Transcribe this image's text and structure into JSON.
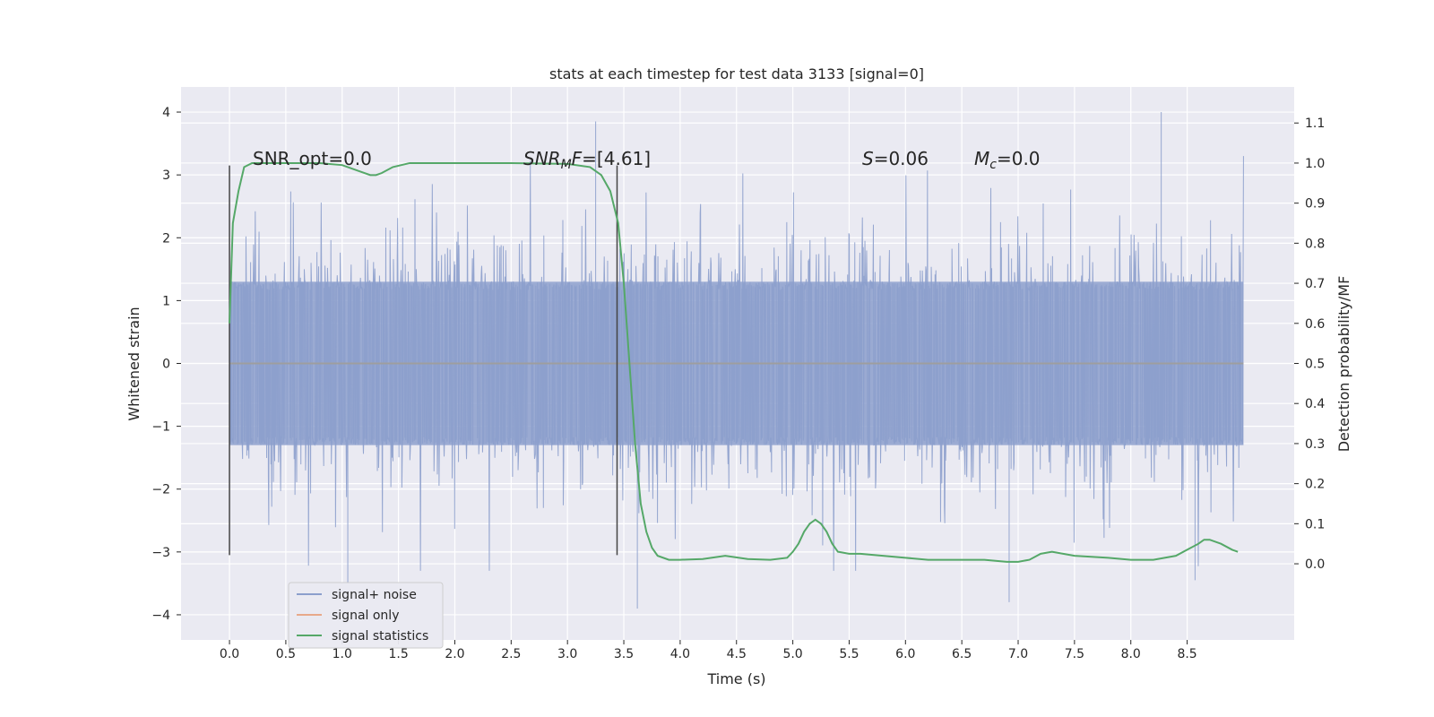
{
  "chart_data": {
    "type": "line",
    "title": "stats at each timestep for test data 3133 [signal=0]",
    "xlabel": "Time (s)",
    "ylabel": "Whitened strain",
    "y2label": "Detection probability/MF",
    "xlim": [
      -0.43,
      9.45
    ],
    "ylim": [
      -4.4,
      4.4
    ],
    "y2lim": [
      -0.19,
      1.19
    ],
    "x_ticks": [
      0.0,
      0.5,
      1.0,
      1.5,
      2.0,
      2.5,
      3.0,
      3.5,
      4.0,
      4.5,
      5.0,
      5.5,
      6.0,
      6.5,
      7.0,
      7.5,
      8.0,
      8.5
    ],
    "x_tick_labels": [
      "0.0",
      "0.5",
      "1.0",
      "1.5",
      "2.0",
      "2.5",
      "3.0",
      "3.5",
      "4.0",
      "4.5",
      "5.0",
      "5.5",
      "6.0",
      "6.5",
      "7.0",
      "7.5",
      "8.0",
      "8.5"
    ],
    "y_ticks": [
      4,
      3,
      2,
      1,
      0,
      -1,
      -2,
      -3,
      -4
    ],
    "y_tick_labels": [
      "4",
      "3",
      "2",
      "1",
      "0",
      "−1",
      "−2",
      "−3",
      "−4"
    ],
    "y2_ticks": [
      1.1,
      1.0,
      0.9,
      0.8,
      0.7,
      0.6,
      0.5,
      0.4,
      0.3,
      0.2,
      0.1,
      0.0
    ],
    "y2_tick_labels": [
      "1.1",
      "1.0",
      "0.9",
      "0.8",
      "0.7",
      "0.6",
      "0.5",
      "0.4",
      "0.3",
      "0.2",
      "0.1",
      "0.0"
    ],
    "grid": true,
    "legend_position": "lower-left",
    "series": [
      {
        "name": "signal+ noise",
        "axis": "left",
        "color": "#8c9fcc",
        "x_range": [
          0.0,
          9.0
        ],
        "envelope_typical": 1.3,
        "notable_peaks": [
          {
            "x": 3.25,
            "y": 3.85
          },
          {
            "x": 8.27,
            "y": 4.0
          },
          {
            "x": 3.62,
            "y": -3.9
          },
          {
            "x": 6.92,
            "y": -3.8
          },
          {
            "x": 8.57,
            "y": -3.45
          },
          {
            "x": 1.05,
            "y": -3.5
          }
        ]
      },
      {
        "name": "signal only",
        "axis": "left",
        "color": "#dd8452",
        "x": [
          0.0,
          9.0
        ],
        "y": [
          0.0,
          0.0
        ]
      },
      {
        "name": "signal statistics",
        "axis": "right",
        "color": "#55a868",
        "x": [
          0.0,
          0.03,
          0.08,
          0.13,
          0.2,
          0.4,
          0.8,
          1.0,
          1.15,
          1.25,
          1.3,
          1.35,
          1.45,
          1.6,
          2.0,
          2.5,
          3.0,
          3.2,
          3.3,
          3.38,
          3.45,
          3.5,
          3.55,
          3.6,
          3.65,
          3.7,
          3.75,
          3.8,
          3.9,
          4.0,
          4.2,
          4.4,
          4.6,
          4.8,
          4.95,
          5.0,
          5.05,
          5.1,
          5.15,
          5.2,
          5.25,
          5.3,
          5.35,
          5.4,
          5.5,
          5.6,
          5.8,
          6.0,
          6.2,
          6.5,
          6.7,
          6.9,
          7.0,
          7.1,
          7.2,
          7.3,
          7.5,
          7.8,
          8.0,
          8.2,
          8.4,
          8.5,
          8.6,
          8.65,
          8.7,
          8.8,
          8.9,
          8.95
        ],
        "y": [
          0.6,
          0.85,
          0.93,
          0.99,
          1.0,
          1.0,
          1.0,
          0.995,
          0.98,
          0.97,
          0.97,
          0.975,
          0.99,
          1.0,
          1.0,
          1.0,
          0.998,
          0.99,
          0.97,
          0.93,
          0.85,
          0.7,
          0.5,
          0.3,
          0.15,
          0.08,
          0.04,
          0.02,
          0.01,
          0.01,
          0.012,
          0.02,
          0.012,
          0.01,
          0.015,
          0.03,
          0.05,
          0.08,
          0.1,
          0.11,
          0.1,
          0.08,
          0.05,
          0.03,
          0.025,
          0.025,
          0.02,
          0.015,
          0.01,
          0.01,
          0.01,
          0.005,
          0.005,
          0.01,
          0.025,
          0.03,
          0.02,
          0.015,
          0.01,
          0.01,
          0.02,
          0.035,
          0.05,
          0.06,
          0.06,
          0.05,
          0.035,
          0.03
        ]
      }
    ],
    "vertical_markers": [
      {
        "x": 0.0,
        "y_range": [
          -3.05,
          3.15
        ],
        "color": "#444444"
      },
      {
        "x": 3.44,
        "y_range": [
          -3.05,
          3.15
        ],
        "color": "#444444"
      }
    ],
    "annotations": [
      {
        "key": "snr_opt",
        "x": 0.2,
        "y": 3.2,
        "text": "SNR_opt=0.0"
      },
      {
        "key": "snr_mf",
        "x": 2.6,
        "y": 3.2,
        "text": "SNR_MF=[4.61]"
      },
      {
        "key": "s",
        "x": 5.6,
        "y": 3.2,
        "text": "S=0.06"
      },
      {
        "key": "mc",
        "x": 6.6,
        "y": 3.2,
        "text": "M_c=0.0"
      }
    ],
    "annotation_parts": {
      "snr_opt": "SNR_opt=0.0",
      "snr_mf_base": "SNR",
      "snr_mf_sub": "M",
      "snr_mf_italic_tail": "F",
      "snr_mf_rest": "=[4.61]",
      "s_var": "S",
      "s_rest": "=0.06",
      "mc_var": "M",
      "mc_sub": "c",
      "mc_rest": "=0.0"
    }
  }
}
